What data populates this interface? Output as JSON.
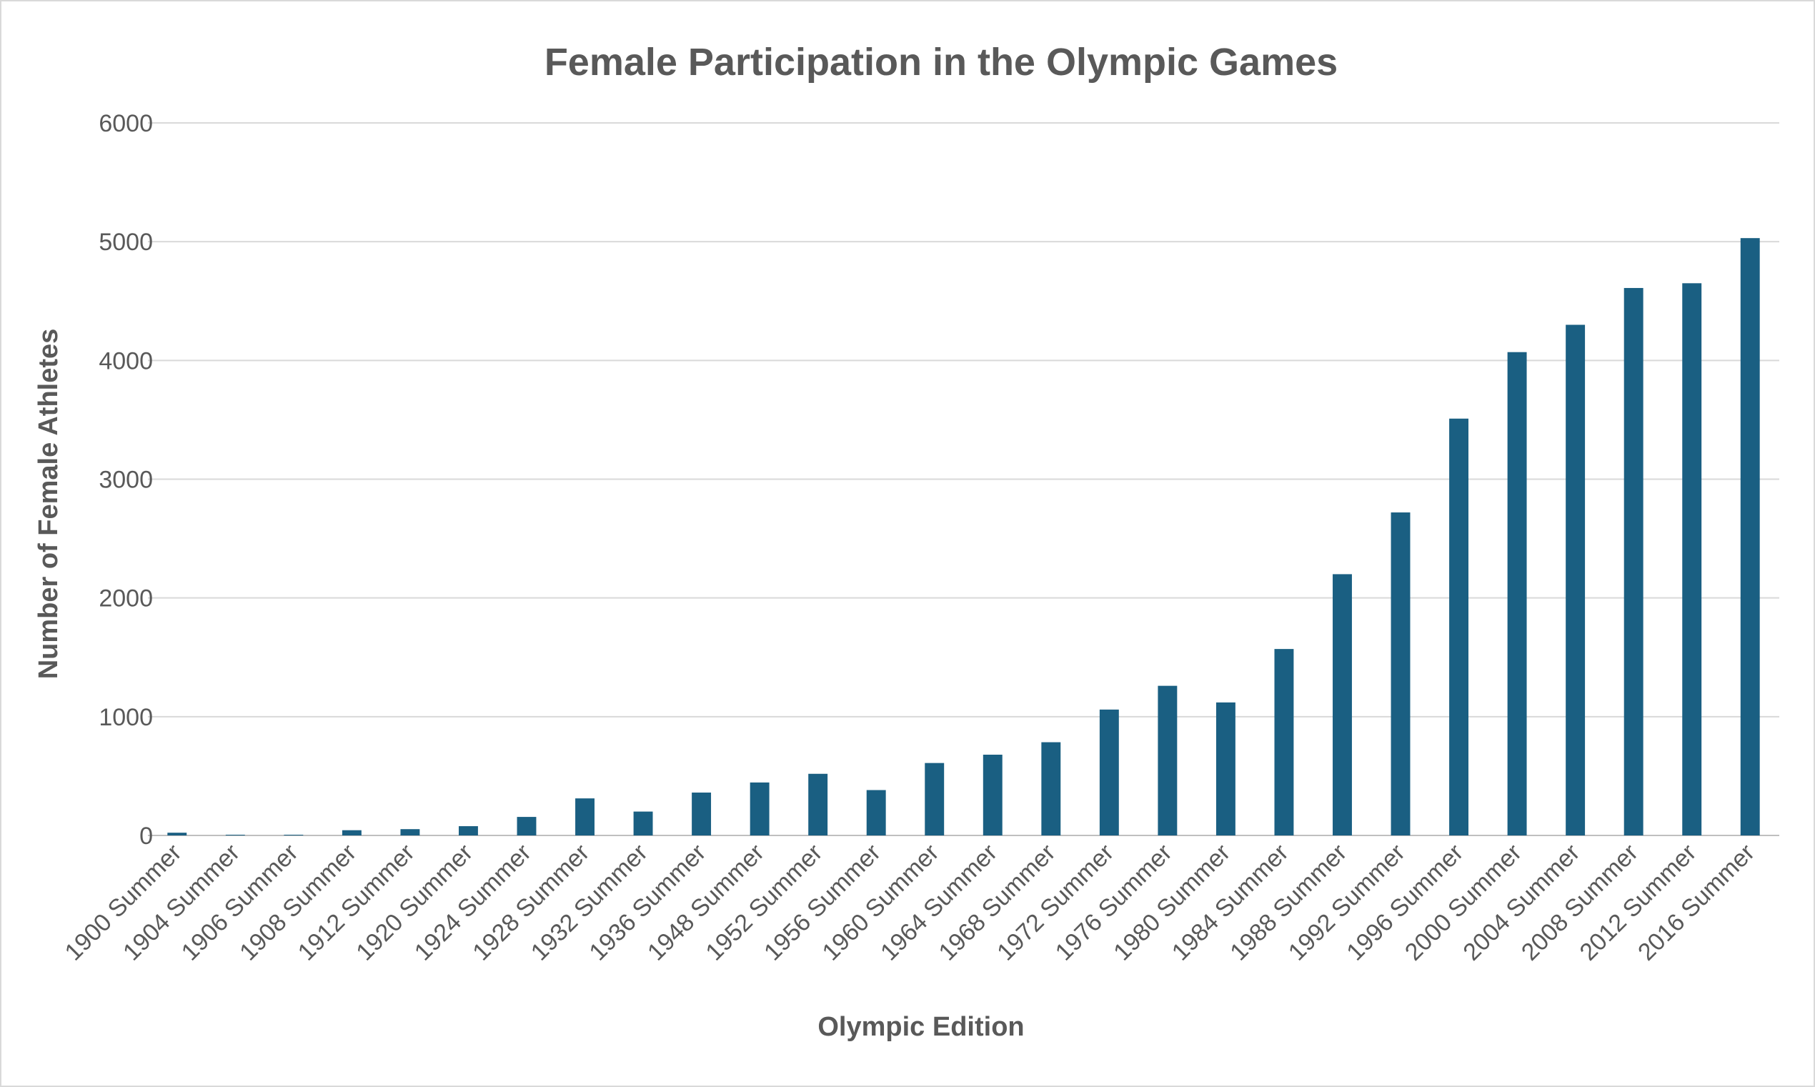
{
  "chart_data": {
    "type": "bar",
    "title": "Female Participation in the Olympic Games",
    "xlabel": "Olympic Edition",
    "ylabel": "Number of Female Athletes",
    "ylim": [
      0,
      6000
    ],
    "yticks": [
      0,
      1000,
      2000,
      3000,
      4000,
      5000,
      6000
    ],
    "grid": true,
    "legend": "none",
    "bar_color": "#1a5f82",
    "categories": [
      "1900 Summer",
      "1904 Summer",
      "1906 Summer",
      "1908 Summer",
      "1912 Summer",
      "1920 Summer",
      "1924 Summer",
      "1928 Summer",
      "1932 Summer",
      "1936 Summer",
      "1948 Summer",
      "1952 Summer",
      "1956 Summer",
      "1960 Summer",
      "1964 Summer",
      "1968 Summer",
      "1972 Summer",
      "1976 Summer",
      "1980 Summer",
      "1984 Summer",
      "1988 Summer",
      "1992 Summer",
      "1996 Summer",
      "2000 Summer",
      "2004 Summer",
      "2008 Summer",
      "2012 Summer",
      "2016 Summer"
    ],
    "values": [
      23,
      6,
      6,
      44,
      53,
      78,
      156,
      312,
      201,
      361,
      446,
      519,
      382,
      610,
      680,
      785,
      1060,
      1260,
      1120,
      1570,
      2200,
      2720,
      3510,
      4070,
      4300,
      4610,
      4650,
      5030
    ]
  }
}
